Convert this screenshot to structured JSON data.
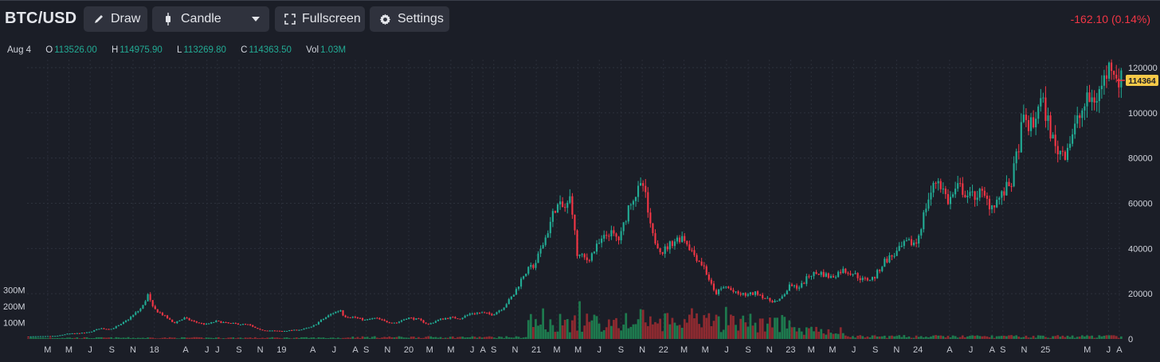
{
  "header": {
    "symbol": "BTC/USD",
    "draw_label": "Draw",
    "chart_type_label": "Candle",
    "fullscreen_label": "Fullscreen",
    "settings_label": "Settings",
    "change_text": "-162.10 (0.14%)"
  },
  "legend": {
    "date": "Aug 4",
    "open_label": "O",
    "open": "113526.00",
    "high_label": "H",
    "high": "114975.90",
    "low_label": "L",
    "low": "113269.80",
    "close_label": "C",
    "close": "114363.50",
    "vol_label": "Vol",
    "vol": "1.03M"
  },
  "colors": {
    "up": "#22ab94",
    "down": "#f23645",
    "vol_up": "#1e7a4e",
    "vol_down": "#8e2a30",
    "last_price_bg": "#f7c948",
    "background": "#1b1e27"
  },
  "chart_data": {
    "type": "candlestick",
    "title": "BTC/USD",
    "last_price": 114364,
    "ylim": [
      0,
      125000
    ],
    "y_ticks": [
      0,
      20000,
      40000,
      60000,
      80000,
      100000,
      120000
    ],
    "y_tick_labels": [
      "0",
      "20000",
      "40000",
      "60000",
      "80000",
      "100000",
      "120000"
    ],
    "volume_axis_labels": [
      "100M",
      "200M",
      "300M"
    ],
    "volume_ticks_millions": [
      100,
      200,
      300
    ],
    "grid": true,
    "x_tick_labels": [
      "M",
      "M",
      "J",
      "S",
      "N",
      "18",
      "A",
      "J",
      "J",
      "S",
      "N",
      "19",
      "A",
      "J",
      "A",
      "S",
      "N",
      "20",
      "M",
      "M",
      "J",
      "A",
      "S",
      "N",
      "21",
      "M",
      "M",
      "J",
      "S",
      "N",
      "22",
      "M",
      "M",
      "J",
      "S",
      "N",
      "23",
      "M",
      "M",
      "J",
      "S",
      "N",
      "24",
      "A",
      "J",
      "A",
      "S",
      "N",
      "25",
      "M",
      "J",
      "A"
    ],
    "x_ticks": [
      "2017-03",
      "2017-05",
      "2017-07",
      "2017-09",
      "2017-11",
      "2018-01",
      "2018-04",
      "2018-06",
      "2018-07",
      "2018-09",
      "2018-11",
      "2019-01",
      "2019-04",
      "2019-06",
      "2019-08",
      "2019-09",
      "2019-11",
      "2020-01",
      "2020-03",
      "2020-05",
      "2020-07",
      "2020-08",
      "2020-09",
      "2020-11",
      "2021-01",
      "2021-03",
      "2021-05",
      "2021-07",
      "2021-09",
      "2021-11",
      "2022-01",
      "2022-03",
      "2022-05",
      "2022-07",
      "2022-09",
      "2022-11",
      "2023-01",
      "2023-03",
      "2023-05",
      "2023-07",
      "2023-09",
      "2023-11",
      "2024-01",
      "2024-04",
      "2024-06",
      "2024-08",
      "2024-09",
      "2024-11",
      "2025-01",
      "2025-05",
      "2025-07",
      "2025-08"
    ],
    "series": [
      {
        "points": [
          [
            "2017-01-01",
            1000
          ],
          [
            "2017-02-01",
            1150
          ],
          [
            "2017-03-01",
            1180
          ],
          [
            "2017-04-01",
            1350
          ],
          [
            "2017-05-01",
            2300
          ],
          [
            "2017-06-01",
            2500
          ],
          [
            "2017-07-01",
            2900
          ],
          [
            "2017-08-01",
            4700
          ],
          [
            "2017-09-01",
            4300
          ],
          [
            "2017-10-01",
            6400
          ],
          [
            "2017-11-01",
            10000
          ],
          [
            "2017-12-01",
            14000
          ],
          [
            "2017-12-17",
            19500
          ],
          [
            "2018-01-01",
            13500
          ],
          [
            "2018-02-01",
            10300
          ],
          [
            "2018-03-01",
            7000
          ],
          [
            "2018-04-01",
            9200
          ],
          [
            "2018-05-01",
            7500
          ],
          [
            "2018-06-01",
            6400
          ],
          [
            "2018-07-01",
            7800
          ],
          [
            "2018-08-01",
            7000
          ],
          [
            "2018-09-01",
            6600
          ],
          [
            "2018-10-01",
            6300
          ],
          [
            "2018-11-01",
            4000
          ],
          [
            "2018-12-01",
            3700
          ],
          [
            "2019-01-01",
            3450
          ],
          [
            "2019-02-01",
            3800
          ],
          [
            "2019-03-01",
            4100
          ],
          [
            "2019-04-01",
            5300
          ],
          [
            "2019-05-01",
            8500
          ],
          [
            "2019-06-01",
            11500
          ],
          [
            "2019-06-26",
            13000
          ],
          [
            "2019-07-01",
            10100
          ],
          [
            "2019-08-01",
            9600
          ],
          [
            "2019-09-01",
            8300
          ],
          [
            "2019-10-01",
            9200
          ],
          [
            "2019-11-01",
            7600
          ],
          [
            "2019-12-01",
            7200
          ],
          [
            "2020-01-01",
            9400
          ],
          [
            "2020-02-01",
            8600
          ],
          [
            "2020-03-01",
            6400
          ],
          [
            "2020-04-01",
            8600
          ],
          [
            "2020-05-01",
            9450
          ],
          [
            "2020-06-01",
            9140
          ],
          [
            "2020-07-01",
            11300
          ],
          [
            "2020-08-01",
            11600
          ],
          [
            "2020-09-01",
            10800
          ],
          [
            "2020-10-01",
            13800
          ],
          [
            "2020-11-01",
            19700
          ],
          [
            "2020-12-01",
            29000
          ],
          [
            "2021-01-01",
            33100
          ],
          [
            "2021-02-01",
            45200
          ],
          [
            "2021-03-01",
            58800
          ],
          [
            "2021-04-01",
            57700
          ],
          [
            "2021-04-14",
            63500
          ],
          [
            "2021-05-01",
            37300
          ],
          [
            "2021-06-01",
            35000
          ],
          [
            "2021-07-01",
            41500
          ],
          [
            "2021-08-01",
            47100
          ],
          [
            "2021-09-01",
            43800
          ],
          [
            "2021-10-01",
            61300
          ],
          [
            "2021-11-08",
            68000
          ],
          [
            "2021-12-01",
            46300
          ],
          [
            "2022-01-01",
            38500
          ],
          [
            "2022-02-01",
            43200
          ],
          [
            "2022-03-01",
            45500
          ],
          [
            "2022-04-01",
            37700
          ],
          [
            "2022-05-01",
            31800
          ],
          [
            "2022-06-01",
            19900
          ],
          [
            "2022-07-01",
            23300
          ],
          [
            "2022-08-01",
            20050
          ],
          [
            "2022-09-01",
            19400
          ],
          [
            "2022-10-01",
            20500
          ],
          [
            "2022-11-01",
            17100
          ],
          [
            "2022-12-01",
            16500
          ],
          [
            "2023-01-01",
            23100
          ],
          [
            "2023-02-01",
            23100
          ],
          [
            "2023-03-01",
            28500
          ],
          [
            "2023-04-01",
            29200
          ],
          [
            "2023-05-01",
            27200
          ],
          [
            "2023-06-01",
            30500
          ],
          [
            "2023-07-01",
            29200
          ],
          [
            "2023-08-01",
            26000
          ],
          [
            "2023-09-01",
            27000
          ],
          [
            "2023-10-01",
            34500
          ],
          [
            "2023-11-01",
            37700
          ],
          [
            "2023-12-01",
            42300
          ],
          [
            "2024-01-01",
            42600
          ],
          [
            "2024-02-01",
            61200
          ],
          [
            "2024-03-01",
            71300
          ],
          [
            "2024-04-01",
            60700
          ],
          [
            "2024-05-01",
            67500
          ],
          [
            "2024-06-01",
            62700
          ],
          [
            "2024-07-01",
            64600
          ],
          [
            "2024-08-01",
            58900
          ],
          [
            "2024-09-01",
            63300
          ],
          [
            "2024-10-01",
            70200
          ],
          [
            "2024-11-01",
            96400
          ],
          [
            "2024-12-01",
            93400
          ],
          [
            "2024-12-17",
            106000
          ],
          [
            "2025-01-01",
            102400
          ],
          [
            "2025-02-01",
            84300
          ],
          [
            "2025-03-01",
            82500
          ],
          [
            "2025-04-01",
            94200
          ],
          [
            "2025-05-01",
            104600
          ],
          [
            "2025-06-01",
            107100
          ],
          [
            "2025-07-01",
            118000
          ],
          [
            "2025-07-14",
            122800
          ],
          [
            "2025-08-04",
            114364
          ]
        ]
      }
    ]
  }
}
